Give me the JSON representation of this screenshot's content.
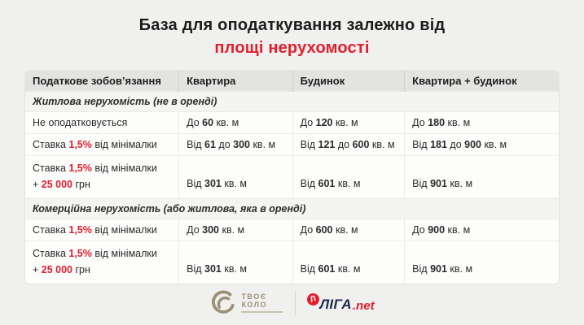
{
  "page": {
    "background": "#f0f0ee",
    "accent_red": "#e31e2c"
  },
  "title": {
    "line1": "База для оподаткування залежно від",
    "line2": "площі нерухомості"
  },
  "table": {
    "headers": [
      "Податкове зобов’язання",
      "Квартира",
      "Будинок",
      "Квартира + будинок"
    ],
    "sections": [
      {
        "label": "Житлова нерухомість (не в оренді)",
        "rows": [
          {
            "tall": false,
            "cells": [
              [
                {
                  "t": "Не оподатковується"
                }
              ],
              [
                {
                  "t": "До "
                },
                {
                  "t": "60",
                  "s": "b"
                },
                {
                  "t": " кв. м"
                }
              ],
              [
                {
                  "t": "До "
                },
                {
                  "t": "120",
                  "s": "b"
                },
                {
                  "t": " кв. м"
                }
              ],
              [
                {
                  "t": "До "
                },
                {
                  "t": "180",
                  "s": "b"
                },
                {
                  "t": " кв. м"
                }
              ]
            ]
          },
          {
            "tall": false,
            "cells": [
              [
                {
                  "t": "Ставка "
                },
                {
                  "t": "1,5%",
                  "s": "rb"
                },
                {
                  "t": " від мінімалки"
                }
              ],
              [
                {
                  "t": "Від "
                },
                {
                  "t": "61",
                  "s": "b"
                },
                {
                  "t": " до "
                },
                {
                  "t": "300",
                  "s": "b"
                },
                {
                  "t": " кв. м"
                }
              ],
              [
                {
                  "t": "Від "
                },
                {
                  "t": "121",
                  "s": "b"
                },
                {
                  "t": " до "
                },
                {
                  "t": "600",
                  "s": "b"
                },
                {
                  "t": " кв. м"
                }
              ],
              [
                {
                  "t": "Від "
                },
                {
                  "t": "181",
                  "s": "b"
                },
                {
                  "t": " до "
                },
                {
                  "t": "900",
                  "s": "b"
                },
                {
                  "t": " кв. м"
                }
              ]
            ]
          },
          {
            "tall": true,
            "cells": [
              [
                {
                  "t": "Ставка "
                },
                {
                  "t": "1,5%",
                  "s": "rb"
                },
                {
                  "t": " від мінімалки"
                },
                {
                  "br": true
                },
                {
                  "t": "+ "
                },
                {
                  "t": "25 000",
                  "s": "rb"
                },
                {
                  "t": " грн"
                }
              ],
              [
                {
                  "t": "Від "
                },
                {
                  "t": "301",
                  "s": "b"
                },
                {
                  "t": " кв. м"
                }
              ],
              [
                {
                  "t": "Від "
                },
                {
                  "t": "601",
                  "s": "b"
                },
                {
                  "t": " кв. м"
                }
              ],
              [
                {
                  "t": "Від "
                },
                {
                  "t": "901",
                  "s": "b"
                },
                {
                  "t": " кв. м"
                }
              ]
            ]
          }
        ]
      },
      {
        "label": "Комерційна нерухомість (або житлова, яка в оренді)",
        "rows": [
          {
            "tall": false,
            "cells": [
              [
                {
                  "t": "Ставка "
                },
                {
                  "t": "1,5%",
                  "s": "rb"
                },
                {
                  "t": " від мінімалки"
                }
              ],
              [
                {
                  "t": "До "
                },
                {
                  "t": "300",
                  "s": "b"
                },
                {
                  "t": " кв. м"
                }
              ],
              [
                {
                  "t": "До "
                },
                {
                  "t": "600",
                  "s": "b"
                },
                {
                  "t": " кв. м"
                }
              ],
              [
                {
                  "t": "До "
                },
                {
                  "t": "900",
                  "s": "b"
                },
                {
                  "t": " кв. м"
                }
              ]
            ]
          },
          {
            "tall": true,
            "cells": [
              [
                {
                  "t": "Ставка "
                },
                {
                  "t": "1,5%",
                  "s": "rb"
                },
                {
                  "t": " від мінімалки"
                },
                {
                  "br": true
                },
                {
                  "t": "+ "
                },
                {
                  "t": "25 000",
                  "s": "rb"
                },
                {
                  "t": " грн"
                }
              ],
              [
                {
                  "t": "Від "
                },
                {
                  "t": "301",
                  "s": "b"
                },
                {
                  "t": " кв. м"
                }
              ],
              [
                {
                  "t": "Від "
                },
                {
                  "t": "601",
                  "s": "b"
                },
                {
                  "t": " кв. м"
                }
              ],
              [
                {
                  "t": "Від "
                },
                {
                  "t": "901",
                  "s": "b"
                },
                {
                  "t": " кв. м"
                }
              ]
            ]
          }
        ]
      }
    ]
  },
  "footer": {
    "kolo_logo": {
      "line1": "ТВОЄ",
      "line2": "КОЛО",
      "color": "#9b9077"
    },
    "liga_logo": {
      "icon_letter": "Л",
      "name": "ЛІГА",
      "suffix": ".net",
      "navy": "#1b2b4d",
      "red": "#e31e2c"
    }
  },
  "chart_data": {
    "type": "table",
    "title": "База для оподаткування залежно від площі нерухомості",
    "columns": [
      "Податкове зобов’язання",
      "Квартира",
      "Будинок",
      "Квартира + будинок"
    ],
    "sections": [
      {
        "label": "Житлова нерухомість (не в оренді)",
        "rows": [
          [
            "Не оподатковується",
            "До 60 кв. м",
            "До 120 кв. м",
            "До 180 кв. м"
          ],
          [
            "Ставка 1,5% від мінімалки",
            "Від 61 до 300 кв. м",
            "Від 121 до 600 кв. м",
            "Від 181 до 900 кв. м"
          ],
          [
            "Ставка 1,5% від мінімалки + 25 000 грн",
            "Від 301 кв. м",
            "Від 601 кв. м",
            "Від 901 кв. м"
          ]
        ]
      },
      {
        "label": "Комерційна нерухомість (або житлова, яка в оренді)",
        "rows": [
          [
            "Ставка 1,5% від мінімалки",
            "До 300 кв. м",
            "До 600 кв. м",
            "До 900 кв. м"
          ],
          [
            "Ставка 1,5% від мінімалки + 25 000 грн",
            "Від 301 кв. м",
            "Від 601 кв. м",
            "Від 901 кв. м"
          ]
        ]
      }
    ]
  }
}
